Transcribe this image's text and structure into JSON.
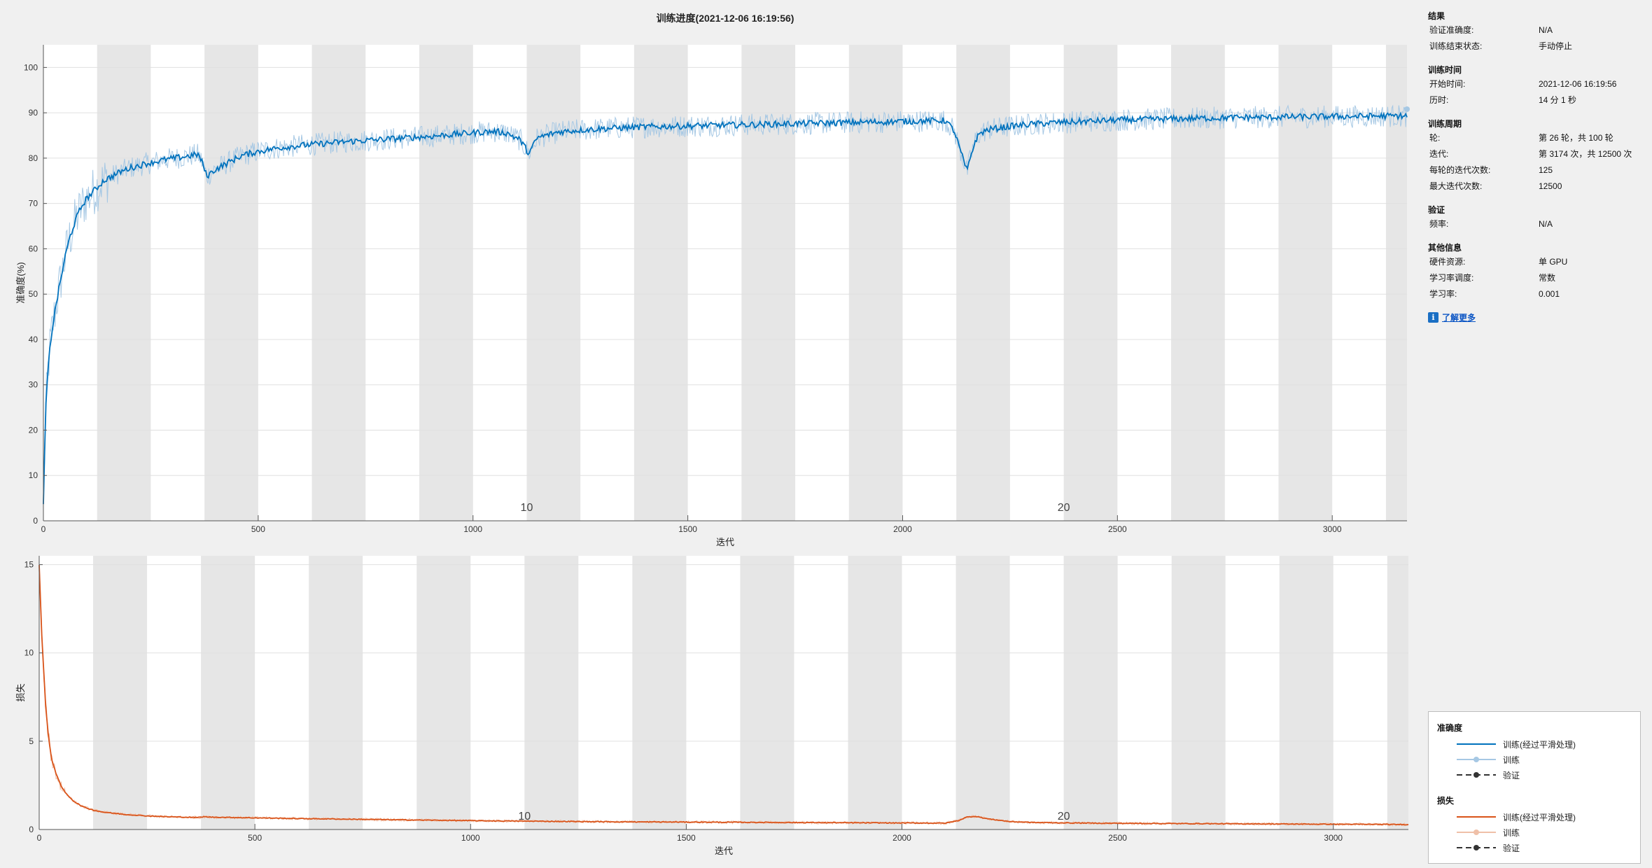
{
  "title": "训练进度(2021-12-06 16:19:56)",
  "info": {
    "sections": [
      {
        "header": "结果",
        "rows": [
          {
            "k": "验证准确度:",
            "v": "N/A"
          },
          {
            "k": "训练结束状态:",
            "v": "手动停止"
          }
        ]
      },
      {
        "header": "训练时间",
        "rows": [
          {
            "k": "开始时间:",
            "v": "2021-12-06 16:19:56"
          },
          {
            "k": "历时:",
            "v": "14 分 1 秒"
          }
        ]
      },
      {
        "header": "训练周期",
        "rows": [
          {
            "k": "轮:",
            "v": "第 26 轮，共 100 轮"
          },
          {
            "k": "迭代:",
            "v": "第 3174 次，共 12500 次"
          },
          {
            "k": "每轮的迭代次数:",
            "v": "125"
          },
          {
            "k": "最大迭代次数:",
            "v": "12500"
          }
        ]
      },
      {
        "header": "验证",
        "rows": [
          {
            "k": "频率:",
            "v": "N/A"
          }
        ]
      },
      {
        "header": "其他信息",
        "rows": [
          {
            "k": "硬件资源:",
            "v": "单 GPU"
          },
          {
            "k": "学习率调度:",
            "v": "常数"
          },
          {
            "k": "学习率:",
            "v": "0.001"
          }
        ]
      }
    ],
    "learn_more": "了解更多",
    "learn_icon": "info-icon"
  },
  "legend": {
    "accuracy_title": "准确度",
    "loss_title": "损失",
    "smoothed_label": "训练(经过平滑处理)",
    "train_label": "训练",
    "val_label": "验证"
  },
  "colors": {
    "accuracy_smoothed": "#0072bd",
    "accuracy_raw": "#a6c8e4",
    "loss_smoothed": "#d95319",
    "loss_raw": "#efc0a8",
    "validation": "#333333",
    "epoch_band": "#e6e6e6",
    "grid": "#e0e0e0"
  },
  "chart_data": [
    {
      "type": "line",
      "name": "accuracy",
      "title": "训练进度(2021-12-06 16:19:56)",
      "xlabel": "迭代",
      "ylabel": "准确度(%)",
      "xlim": [
        0,
        3174
      ],
      "ylim": [
        0,
        105
      ],
      "xticks": [
        0,
        500,
        1000,
        1500,
        2000,
        2500,
        3000
      ],
      "yticks": [
        0,
        10,
        20,
        30,
        40,
        50,
        60,
        70,
        80,
        90,
        100
      ],
      "grid": true,
      "epoch_iterations": 125,
      "epoch_labels": [
        {
          "iteration": 1125,
          "label": "10"
        },
        {
          "iteration": 2375,
          "label": "20"
        }
      ],
      "series": [
        {
          "name": "训练(经过平滑处理)",
          "x": [
            0,
            5,
            10,
            15,
            20,
            25,
            30,
            40,
            50,
            60,
            70,
            80,
            90,
            100,
            120,
            140,
            160,
            180,
            200,
            220,
            240,
            260,
            280,
            300,
            320,
            340,
            360,
            370,
            380,
            400,
            430,
            460,
            500,
            550,
            600,
            650,
            700,
            750,
            800,
            850,
            900,
            950,
            1000,
            1050,
            1080,
            1110,
            1130,
            1150,
            1200,
            1250,
            1300,
            1350,
            1400,
            1450,
            1500,
            1550,
            1600,
            1650,
            1700,
            1750,
            1800,
            1850,
            1900,
            1950,
            2000,
            2050,
            2100,
            2120,
            2130,
            2140,
            2150,
            2160,
            2170,
            2180,
            2200,
            2250,
            2300,
            2350,
            2400,
            2450,
            2500,
            2550,
            2600,
            2650,
            2700,
            2750,
            2800,
            2850,
            2900,
            2950,
            3000,
            3050,
            3100,
            3150,
            3174
          ],
          "values": [
            3,
            24,
            32,
            38,
            42,
            45,
            48,
            53,
            58,
            62,
            65,
            67.5,
            69.5,
            71,
            73,
            75,
            76,
            77,
            77.8,
            78.3,
            78.8,
            79.2,
            79.6,
            79.9,
            80.2,
            80.5,
            80.8,
            79,
            76,
            77.5,
            79,
            80.5,
            81.5,
            82.3,
            82.8,
            83.2,
            83.6,
            83.9,
            84.2,
            84.5,
            84.8,
            85.2,
            85.6,
            85.9,
            85.5,
            84,
            81,
            84.5,
            85.8,
            86.2,
            86.5,
            86.7,
            86.9,
            87,
            87.1,
            87.2,
            87.3,
            87.4,
            87.5,
            87.6,
            87.7,
            87.8,
            87.9,
            88,
            88.1,
            88.2,
            88.3,
            86,
            83,
            80,
            77,
            81,
            84,
            85.5,
            86.3,
            87,
            87.5,
            87.8,
            88,
            88.2,
            88.4,
            88.5,
            88.6,
            88.7,
            88.8,
            88.9,
            89,
            89,
            89.1,
            89.1,
            89.2,
            89.2,
            89.3,
            89.3,
            89.3
          ]
        },
        {
          "name": "训练",
          "values_note": "",
          "noise_amplitude": 2.5
        },
        {
          "name": "验证",
          "values": []
        }
      ]
    },
    {
      "type": "line",
      "name": "loss",
      "xlabel": "迭代",
      "ylabel": "损失",
      "xlim": [
        0,
        3174
      ],
      "ylim": [
        0,
        15.5
      ],
      "xticks": [
        0,
        500,
        1000,
        1500,
        2000,
        2500,
        3000
      ],
      "yticks": [
        0,
        5,
        10,
        15
      ],
      "grid": true,
      "epoch_iterations": 125,
      "epoch_labels": [
        {
          "iteration": 1125,
          "label": "10"
        },
        {
          "iteration": 2375,
          "label": "20"
        }
      ],
      "series": [
        {
          "name": "训练(经过平滑处理)",
          "x": [
            0,
            3,
            6,
            10,
            15,
            20,
            25,
            30,
            40,
            50,
            60,
            80,
            100,
            125,
            150,
            200,
            250,
            300,
            370,
            380,
            400,
            500,
            600,
            700,
            800,
            900,
            1000,
            1100,
            1200,
            1300,
            1400,
            1500,
            1600,
            1700,
            1800,
            1900,
            2000,
            2100,
            2130,
            2150,
            2170,
            2200,
            2250,
            2300,
            2400,
            2500,
            2600,
            2700,
            2800,
            2900,
            3000,
            3100,
            3174
          ],
          "values": [
            15,
            13,
            11,
            9.2,
            7,
            5.6,
            4.6,
            3.9,
            3.1,
            2.5,
            2.1,
            1.6,
            1.3,
            1.1,
            0.98,
            0.85,
            0.77,
            0.72,
            0.68,
            0.72,
            0.7,
            0.66,
            0.62,
            0.59,
            0.56,
            0.53,
            0.5,
            0.48,
            0.46,
            0.44,
            0.43,
            0.42,
            0.41,
            0.4,
            0.39,
            0.38,
            0.37,
            0.36,
            0.5,
            0.7,
            0.75,
            0.6,
            0.45,
            0.4,
            0.37,
            0.35,
            0.34,
            0.33,
            0.32,
            0.31,
            0.3,
            0.29,
            0.28
          ]
        },
        {
          "name": "训练",
          "noise_amplitude": 0.08
        },
        {
          "name": "验证",
          "values": []
        }
      ]
    }
  ]
}
